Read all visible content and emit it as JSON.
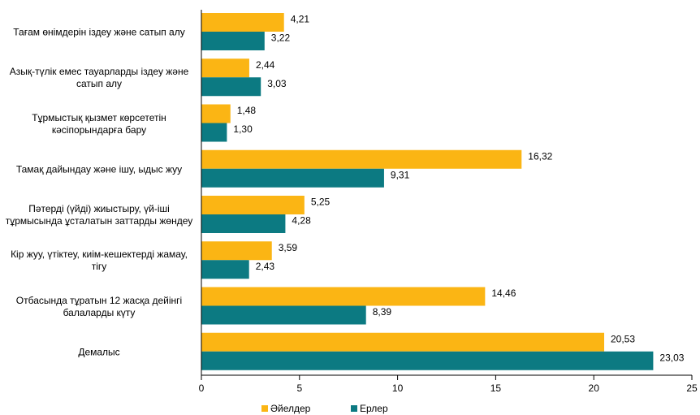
{
  "chart_data": {
    "type": "hbar",
    "categories": [
      "Тағам өнімдерін іздеу және сатып алу",
      "Азық-түлік емес тауарларды іздеу және сатып алу",
      "Тұрмыстық қызмет көрсететін кәсіпорындарға бару",
      "Тамақ дайындау және ішу, ыдыс жуу",
      "Пәтерді (үйді) жиыстыру, үй-іші тұрмысында ұсталатын заттарды жөндеу",
      "Кір жуу, үтіктеу, киім-кешектерді жамау, тігу",
      "Отбасында тұратын 12 жасқа дейінгі балаларды күту",
      "Демалыс"
    ],
    "series": [
      {
        "name": "Әйелдер",
        "color": "#fbb514",
        "values": [
          4.21,
          2.44,
          1.48,
          16.32,
          5.25,
          3.59,
          14.46,
          20.53
        ],
        "value_labels": [
          "4,21",
          "2,44",
          "1,48",
          "16,32",
          "5,25",
          "3,59",
          "14,46",
          "20,53"
        ]
      },
      {
        "name": "Ерлер",
        "color": "#0c7a82",
        "values": [
          3.22,
          3.03,
          1.3,
          9.31,
          4.28,
          2.43,
          8.39,
          23.03
        ],
        "value_labels": [
          "3,22",
          "3,03",
          "1,30",
          "9,31",
          "4,28",
          "2,43",
          "8,39",
          "23,03"
        ]
      }
    ],
    "xlim": [
      0,
      25
    ],
    "xticks": [
      0,
      5,
      10,
      15,
      20,
      25
    ],
    "grid": false,
    "legend": "bottom"
  }
}
